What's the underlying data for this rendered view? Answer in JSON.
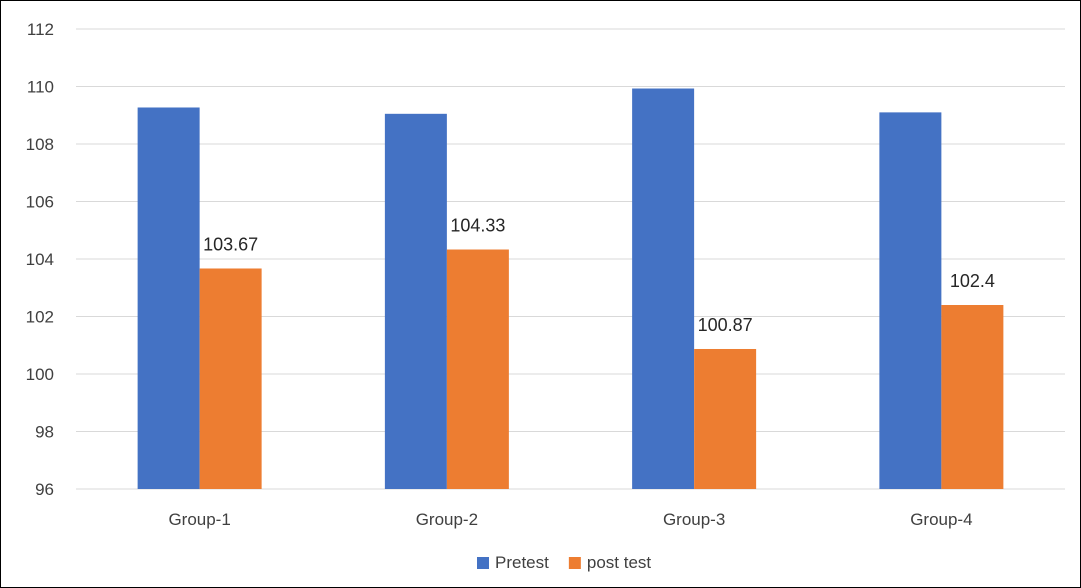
{
  "chart_data": {
    "type": "bar",
    "title": "",
    "xlabel": "",
    "ylabel": "",
    "categories": [
      "Group-1",
      "Group-2",
      "Group-3",
      "Group-4"
    ],
    "series": [
      {
        "name": "Pretest",
        "color": "#4472C4",
        "values": [
          109.27,
          109.05,
          109.93,
          109.1
        ],
        "labels": [
          "",
          "",
          "",
          ""
        ]
      },
      {
        "name": "post test",
        "color": "#ED7D31",
        "values": [
          103.67,
          104.33,
          100.87,
          102.4
        ],
        "labels": [
          "103.67",
          "104.33",
          "100.87",
          "102.4"
        ]
      }
    ],
    "ylim": [
      96,
      112
    ],
    "yticks": [
      "96",
      "98",
      "100",
      "102",
      "104",
      "106",
      "108",
      "110",
      "112"
    ],
    "grid": true,
    "gridColor": "#D9D9D9",
    "legend_position": "bottom"
  }
}
